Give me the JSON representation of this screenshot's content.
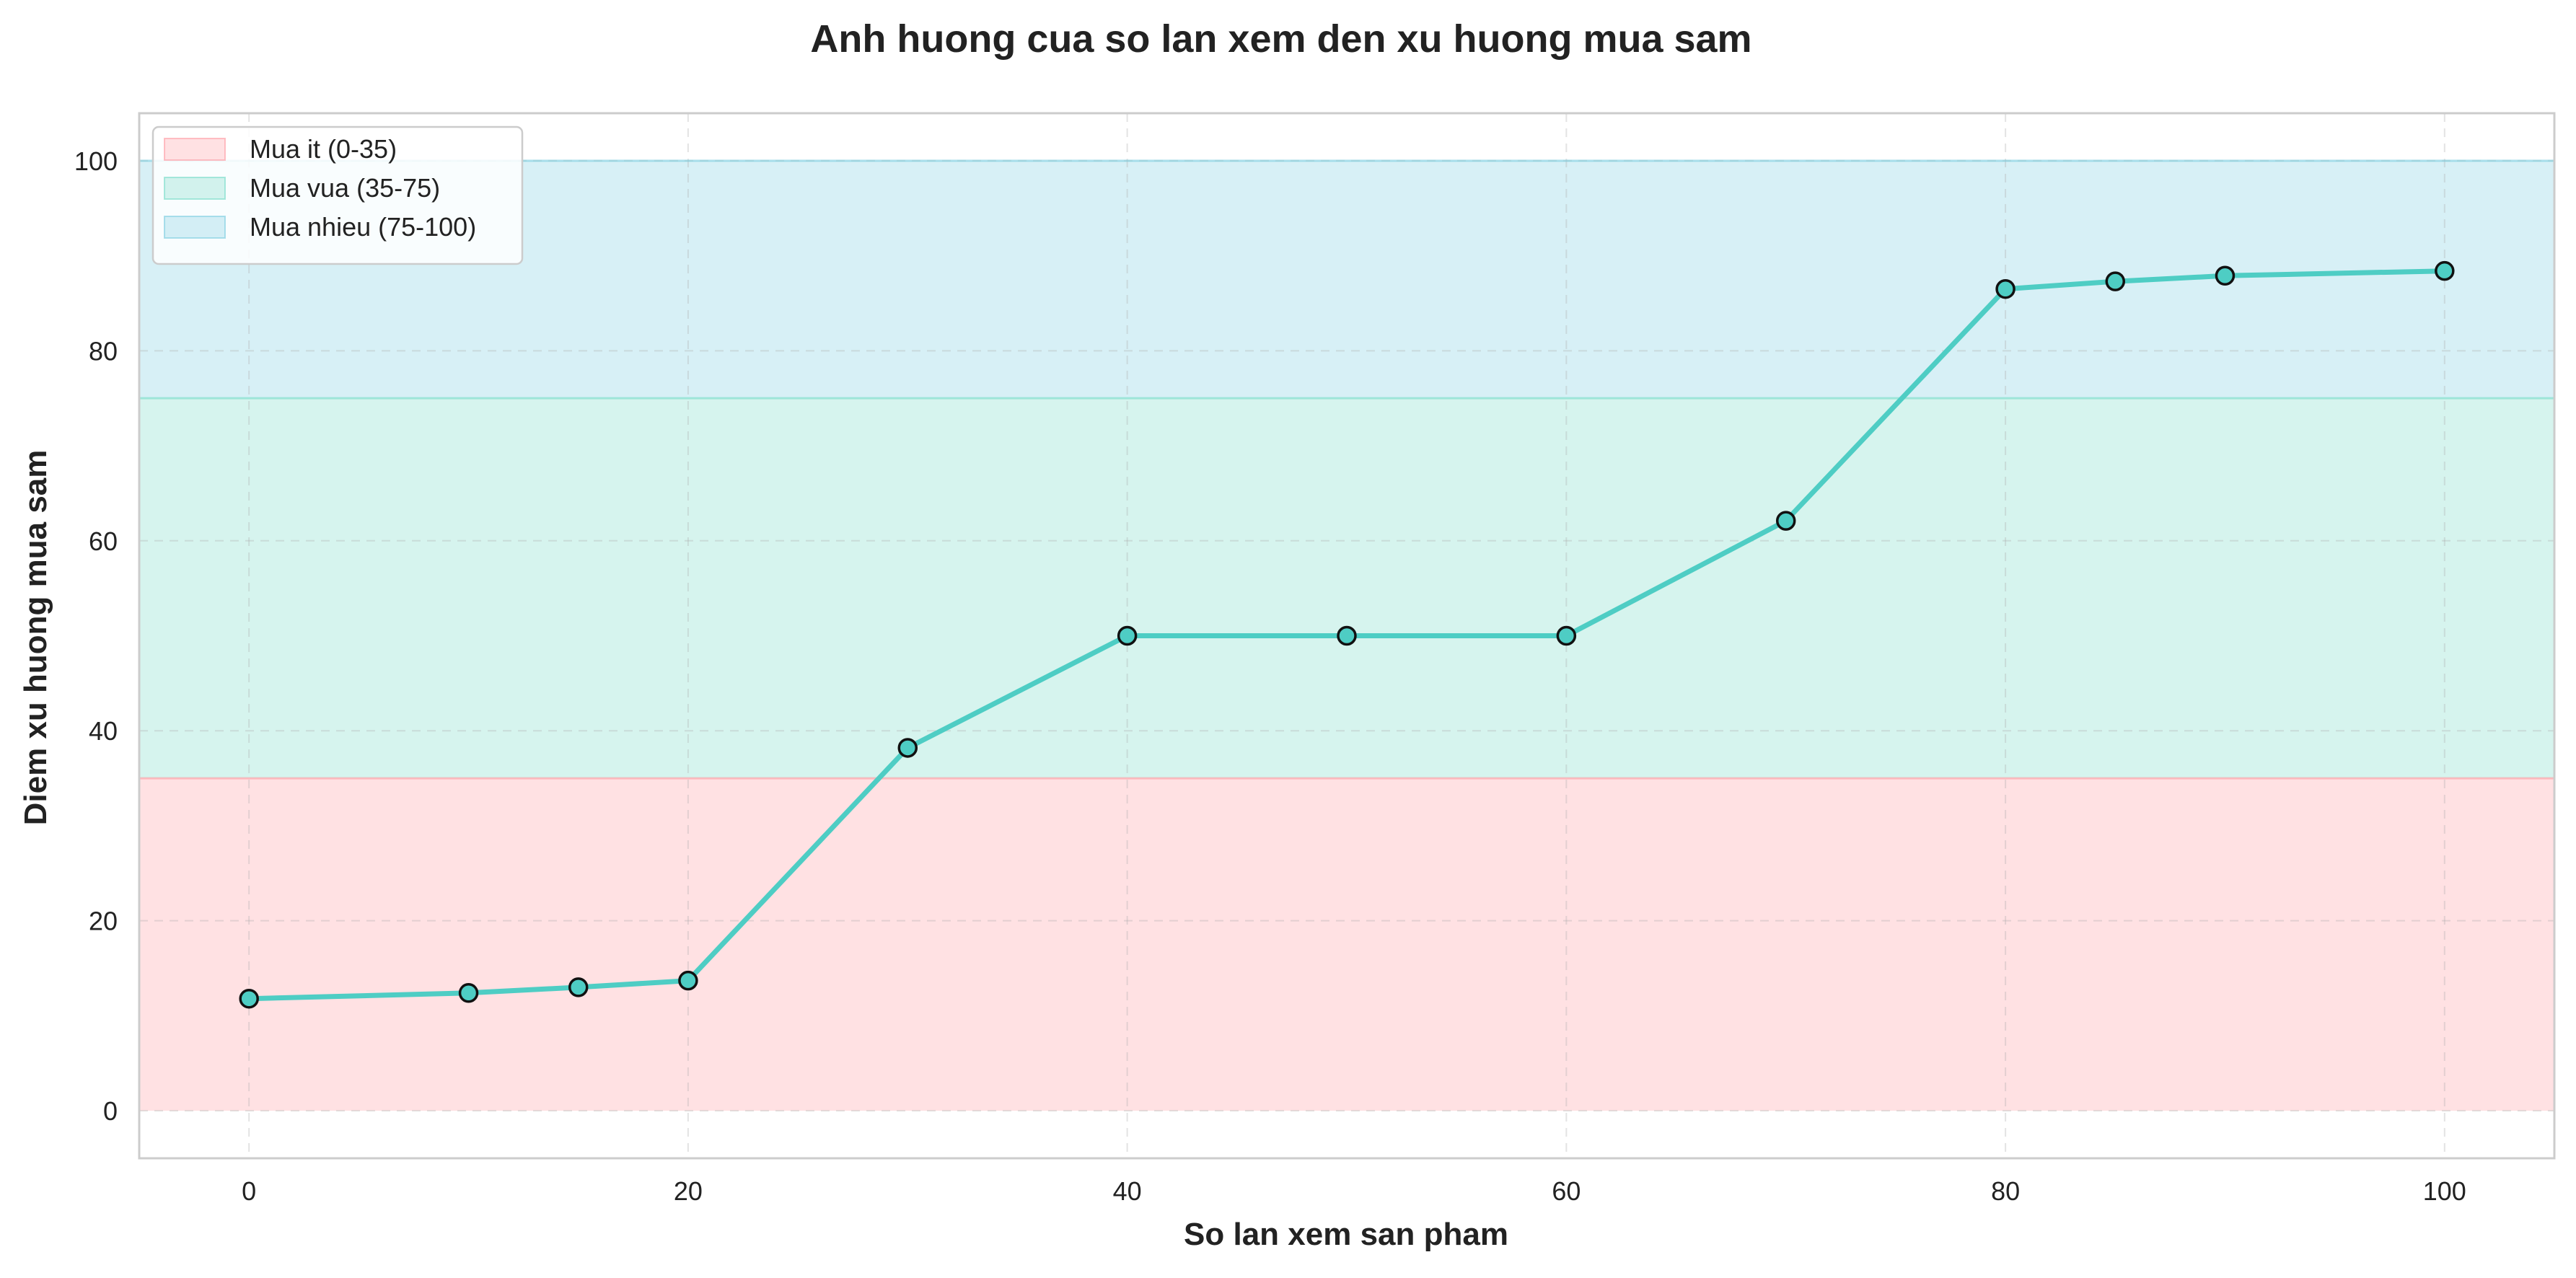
{
  "chart_data": {
    "type": "line",
    "title": "Anh huong cua so lan xem den xu huong mua sam",
    "xlabel": "So lan xem san pham",
    "ylabel": "Diem xu huong mua sam",
    "xlim": [
      -5,
      105
    ],
    "ylim": [
      -5,
      105
    ],
    "x_ticks": [
      0,
      20,
      40,
      60,
      80,
      100
    ],
    "y_ticks": [
      0,
      20,
      40,
      60,
      80,
      100
    ],
    "grid": true,
    "legend_position": "top-left",
    "bands": [
      {
        "label": "Mua it (0-35)",
        "y_from": 0,
        "y_to": 35,
        "color": "#ff9aa2"
      },
      {
        "label": "Mua vua (35-75)",
        "y_from": 35,
        "y_to": 75,
        "color": "#76dcc8"
      },
      {
        "label": "Mua nhieu (75-100)",
        "y_from": 75,
        "y_to": 100,
        "color": "#7ccde0"
      }
    ],
    "series": [
      {
        "color": "#4ecdc4",
        "x": [
          0,
          10,
          15,
          20,
          30,
          40,
          50,
          60,
          70,
          80,
          85,
          90,
          100
        ],
        "y": [
          11.8,
          12.4,
          13.0,
          13.7,
          38.2,
          50.0,
          50.0,
          50.0,
          62.1,
          86.5,
          87.3,
          87.9,
          88.4
        ]
      }
    ]
  }
}
